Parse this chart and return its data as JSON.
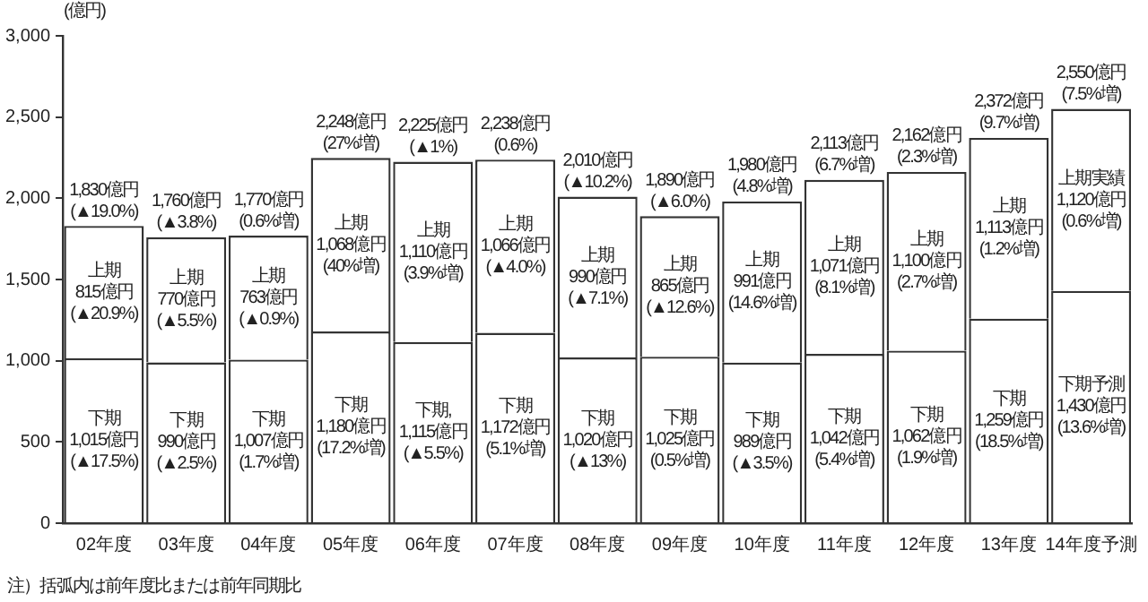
{
  "chart_data": {
    "type": "bar",
    "stacked": true,
    "ylabel": "(億円)",
    "categories": [
      "02年度",
      "03年度",
      "04年度",
      "05年度",
      "06年度",
      "07年度",
      "08年度",
      "09年度",
      "10年度",
      "11年度",
      "12年度",
      "13年度",
      "14年度予測"
    ],
    "series": [
      {
        "color": "#ffffff",
        "values": [
          1015,
          990,
          1007,
          1180,
          1115,
          1172,
          1020,
          1025,
          989,
          1042,
          1062,
          1259,
          1430
        ],
        "value_labels": [
          "下期\n1,015億円\n(▲17.5%)",
          "下期\n990億円\n(▲2.5%)",
          "下期\n1,007億円\n(1.7%増)",
          "下期\n1,180億円\n(17.2%増)",
          "下期,\n1,115億円\n(▲5.5%)",
          "下期\n1,172億円\n(5.1%増)",
          "下期\n1,020億円\n(▲13%)",
          "下期\n1,025億円\n(0.5%増)",
          "下期\n989億円\n(▲3.5%)",
          "下期\n1,042億円\n(5.4%増)",
          "下期\n1,062億円\n(1.9%増)",
          "下期\n1,259億円\n(18.5%増)",
          "下期予測\n1,430億円\n(13.6%増)"
        ]
      },
      {
        "color": "#ffffff",
        "values": [
          815,
          770,
          763,
          1068,
          1110,
          1066,
          990,
          865,
          991,
          1071,
          1100,
          1113,
          1120
        ],
        "value_labels": [
          "上期\n815億円\n(▲20.9%)",
          "上期\n770億円\n(▲5.5%)",
          "上期\n763億円\n(▲0.9%)",
          "上期\n1,068億円\n(40%増)",
          "上期\n1,110億円\n(3.9%増)",
          "上期\n1,066億円\n(▲4.0%)",
          "上期\n990億円\n(▲7.1%)",
          "上期\n865億円\n(▲12.6%)",
          "上期\n991億円\n(14.6%増)",
          "上期\n1,071億円\n(8.1%増)",
          "上期\n1,100億円\n(2.7%増)",
          "上期\n1,113億円\n(1.2%増)",
          "上期実績\n1,120億円\n(0.6%増)"
        ]
      }
    ],
    "totals": [
      "1,830億円\n(▲19.0%)",
      "1,760億円\n(▲3.8%)",
      "1,770億円\n(0.6%増)",
      "2,248億円\n(27%増)",
      "2,225億円\n(▲1%)",
      "2,238億円\n(0.6%)",
      "2,010億円\n(▲10.2%)",
      "1,890億円\n(▲6.0%)",
      "1,980億円\n(4.8%増)",
      "2,113億円\n(6.7%増)",
      "2,162億円\n(2.3%増)",
      "2,372億円\n(9.7%増)",
      "2,550億円\n(7.5%増)"
    ],
    "ylim": [
      0,
      3000
    ],
    "yticks": [
      0,
      500,
      {
        "value": 1000,
        "label": "1,000"
      },
      {
        "value": 1500,
        "label": "1,500"
      },
      {
        "value": 2000,
        "label": "2,000"
      },
      {
        "value": 2500,
        "label": "2,500"
      },
      {
        "value": 3000,
        "label": "3,000"
      }
    ],
    "annotations": [
      "注）括弧内は前年度比または前年同期比"
    ]
  }
}
